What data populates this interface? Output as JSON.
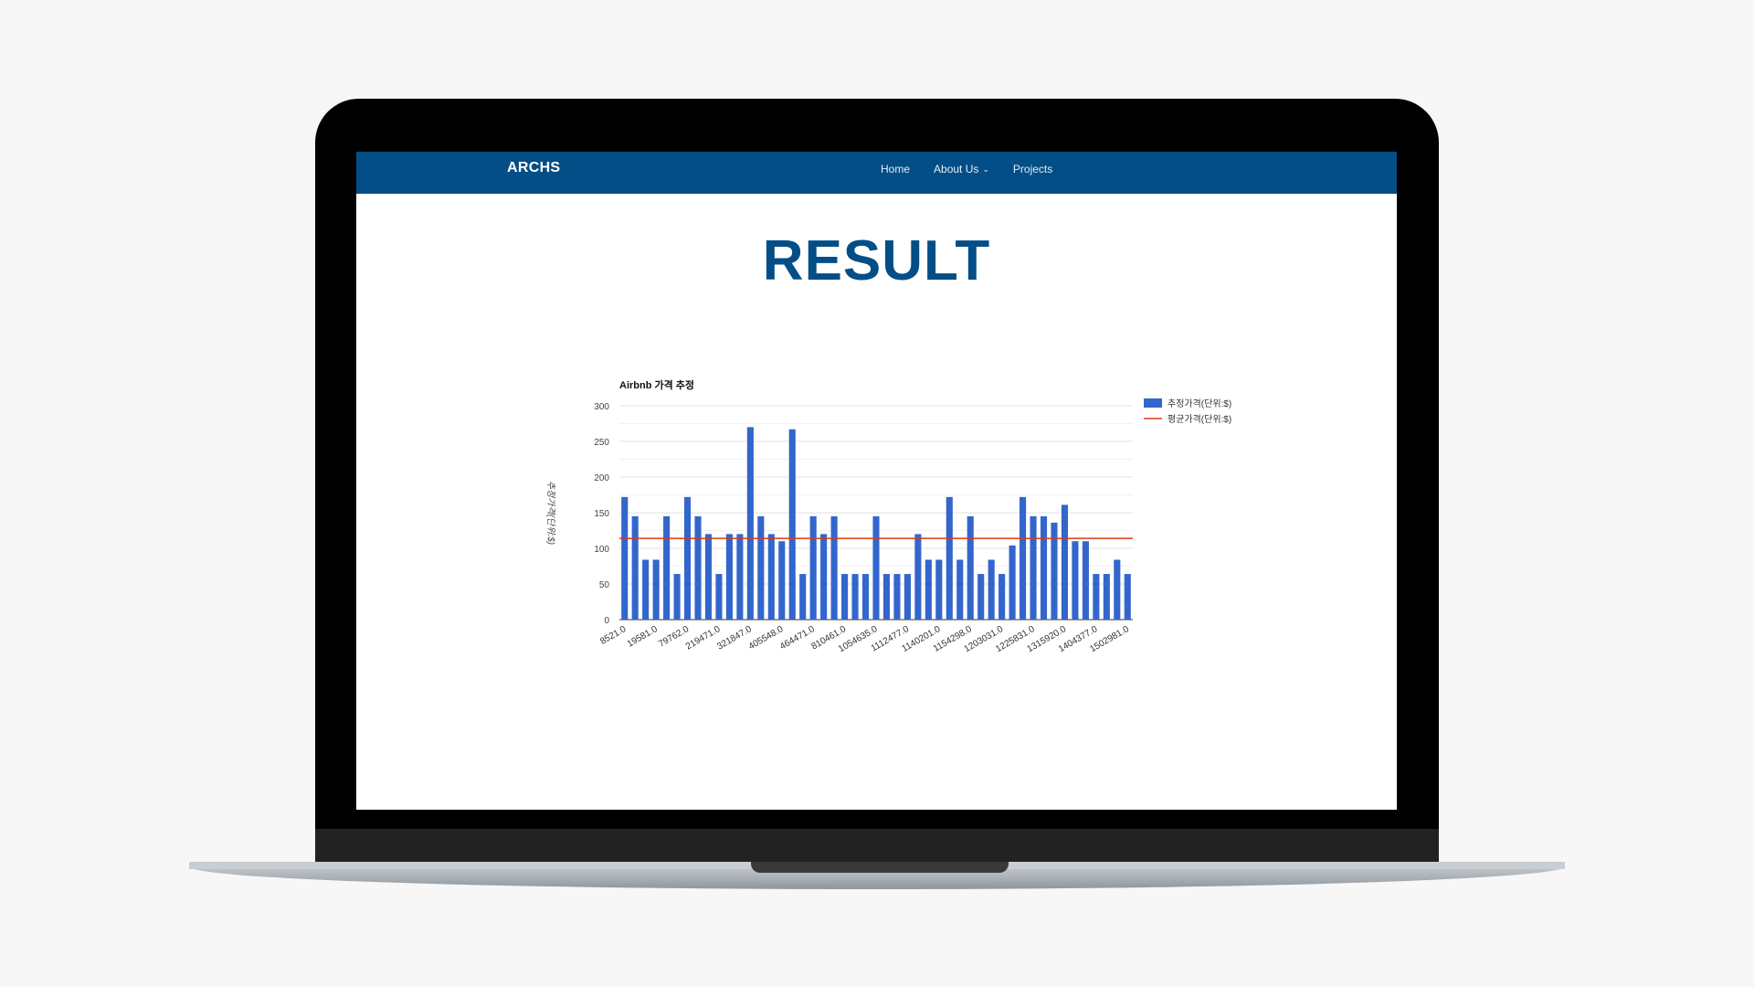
{
  "nav": {
    "brand": "ARCHS",
    "links": [
      {
        "label": "Home"
      },
      {
        "label": "About Us",
        "dropdown": true
      },
      {
        "label": "Projects"
      }
    ]
  },
  "page": {
    "title": "RESULT"
  },
  "colors": {
    "navbar": "#034e86",
    "bar": "#3366cc",
    "line": "#dc3912",
    "title": "#034e86"
  },
  "icons": {
    "dropdown": "chevron-down-icon"
  },
  "chart_data": {
    "type": "bar",
    "title": "Airbnb 가격 추정",
    "ylabel": "추정가격(단위:$)",
    "xlabel": "",
    "ylim": [
      0,
      300
    ],
    "yticks": [
      0,
      50,
      100,
      150,
      200,
      250,
      300
    ],
    "grid": true,
    "legend_position": "right",
    "x_tick_labels": [
      "8521.0",
      "19581.0",
      "79762.0",
      "219471.0",
      "321847.0",
      "405548.0",
      "464471.0",
      "810461.0",
      "1054635.0",
      "1112477.0",
      "1140201.0",
      "1154298.0",
      "1203031.0",
      "1225831.0",
      "1315920.0",
      "1404377.0",
      "1502981.0"
    ],
    "series": [
      {
        "name": "추정가격(단위:$)",
        "type": "bar",
        "values": [
          172,
          145,
          84,
          84,
          145,
          64,
          172,
          145,
          120,
          64,
          120,
          120,
          270,
          145,
          120,
          110,
          267,
          64,
          145,
          120,
          145,
          64,
          64,
          64,
          145,
          64,
          64,
          64,
          120,
          84,
          84,
          172,
          84,
          145,
          64,
          84,
          64,
          104,
          172,
          145,
          145,
          136,
          161,
          110,
          110,
          64,
          64,
          84,
          64
        ]
      },
      {
        "name": "평균가격(단위:$)",
        "type": "line",
        "value": 114
      }
    ]
  }
}
